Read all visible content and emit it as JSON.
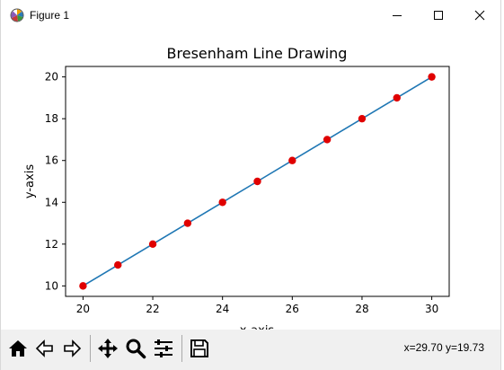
{
  "window": {
    "title": "Figure 1",
    "controls": {
      "minimize": "minimize",
      "maximize": "maximize",
      "close": "close"
    }
  },
  "toolbar": {
    "buttons": [
      {
        "name": "home",
        "icon": "home-icon"
      },
      {
        "name": "back",
        "icon": "back-arrow-icon"
      },
      {
        "name": "forward",
        "icon": "forward-arrow-icon"
      },
      {
        "name": "pan",
        "icon": "move-icon"
      },
      {
        "name": "zoom",
        "icon": "magnifier-icon"
      },
      {
        "name": "configure-subplots",
        "icon": "sliders-icon"
      },
      {
        "name": "save",
        "icon": "floppy-disk-icon"
      }
    ],
    "coords": "x=29.70 y=19.73"
  },
  "chart_data": {
    "type": "line",
    "title": "Bresenham Line Drawing",
    "xlabel": "x-axis",
    "ylabel": "y-axis",
    "xlim": [
      19.5,
      30.5
    ],
    "ylim": [
      9.5,
      20.5
    ],
    "xticks": [
      20,
      22,
      24,
      26,
      28,
      30
    ],
    "yticks": [
      10,
      12,
      14,
      16,
      18,
      20
    ],
    "grid": false,
    "series": [
      {
        "x": [
          20,
          21,
          22,
          23,
          24,
          25,
          26,
          27,
          28,
          29,
          30
        ],
        "y": [
          10,
          11,
          12,
          13,
          14,
          15,
          16,
          17,
          18,
          19,
          20
        ],
        "line_color": "#1f77b4",
        "marker_color": "#e00000"
      }
    ]
  }
}
